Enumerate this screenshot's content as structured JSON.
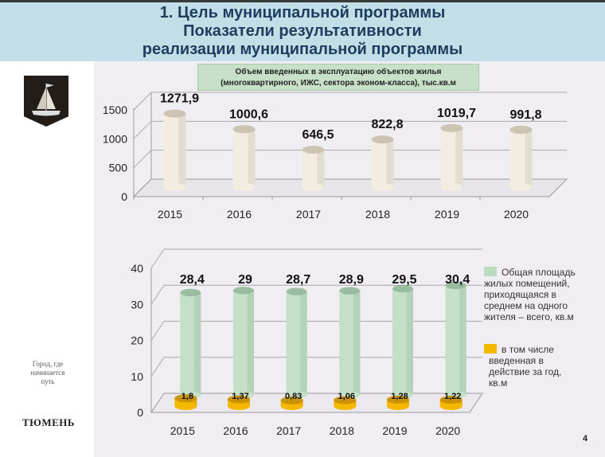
{
  "header": {
    "line1": "1. Цель муниципальной программы",
    "line2": "Показатели результативности",
    "line3": "реализации муниципальной программы"
  },
  "sidebar": {
    "slogan_line1": "Город, где",
    "slogan_line2": "начинается",
    "slogan_line3": "путь",
    "city": "ТЮМЕНЬ",
    "crest_icon": "coat-of-arms-ship-icon"
  },
  "chart1": {
    "subtitle_line1": "Объем введенных в эксплуатацию объектов жилья",
    "subtitle_line2": "(многоквартирного, ИЖС, сектора эконом-класса), тыс.кв.м"
  },
  "chart2": {
    "legend": [
      {
        "label_lines": [
          "Общая площадь",
          "жилых помещений,",
          "приходящаяся в",
          "среднем на одного",
          "жителя – всего, кв.м"
        ],
        "color": "#bcdcc0"
      },
      {
        "label_lines": [
          "в том числе",
          "введенная в",
          "действие за год,",
          "кв.м"
        ],
        "color": "#f5b800"
      }
    ]
  },
  "page_number": "4",
  "chart_data": [
    {
      "type": "bar",
      "title": "Объем введенных в эксплуатацию объектов жилья (многоквартирного, ИЖС, сектора эконом-класса), тыс.кв.м",
      "categories": [
        "2015",
        "2016",
        "2017",
        "2018",
        "2019",
        "2020"
      ],
      "values": [
        1271.9,
        1000.6,
        646.5,
        822.8,
        1019.7,
        991.8
      ],
      "labels": [
        "1271,9",
        "1000,6",
        "646,5",
        "822,8",
        "1019,7",
        "991,8"
      ],
      "yticks": [
        "0",
        "500",
        "1000",
        "1500"
      ],
      "ylim": [
        0,
        1500
      ],
      "xlabel": "",
      "ylabel": "",
      "color": "#ece6d6",
      "grid": true
    },
    {
      "type": "bar",
      "title": "",
      "categories": [
        "2015",
        "2016",
        "2017",
        "2018",
        "2019",
        "2020"
      ],
      "series": [
        {
          "name": "Общая площадь жилых помещений, приходящаяся в среднем на одного жителя – всего, кв.м",
          "values": [
            28.4,
            29,
            28.7,
            28.9,
            29.5,
            30.4
          ],
          "labels": [
            "28,4",
            "29",
            "28,7",
            "28,9",
            "29,5",
            "30,4"
          ],
          "color": "#bcdcc0"
        },
        {
          "name": "в том числе введенная в действие за год, кв.м",
          "values": [
            1.8,
            1.37,
            0.83,
            1.06,
            1.28,
            1.22
          ],
          "labels": [
            "1,8",
            "1,37",
            "0,83",
            "1,06",
            "1,28",
            "1,22"
          ],
          "color": "#f5b800"
        }
      ],
      "yticks": [
        "0",
        "10",
        "20",
        "30",
        "40"
      ],
      "ylim": [
        0,
        40
      ],
      "legend_position": "right",
      "grid": true
    }
  ]
}
